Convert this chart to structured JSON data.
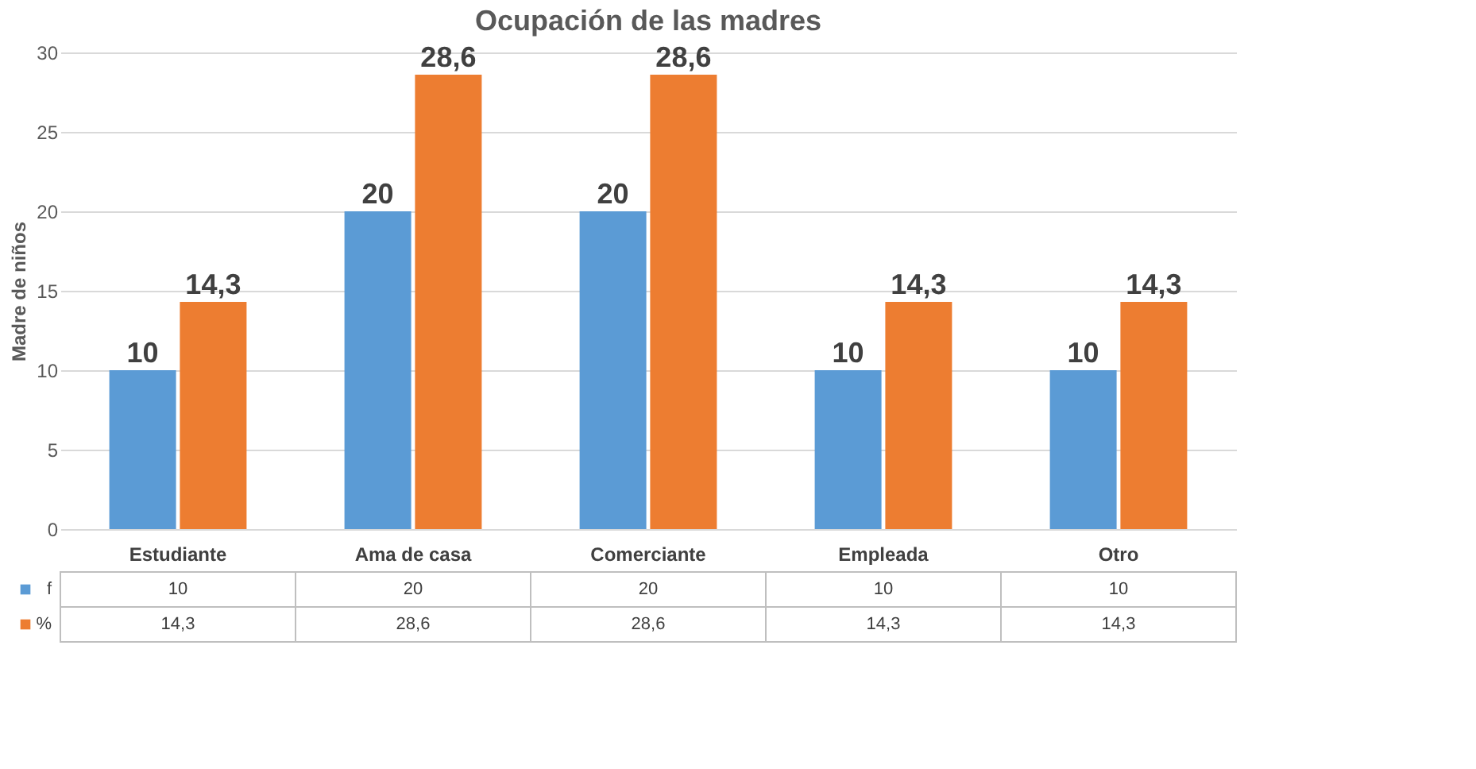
{
  "chart_data": {
    "type": "bar",
    "title": "Ocupación de las madres",
    "ylabel": "Madre de niños",
    "categories": [
      "Estudiante",
      "Ama de casa",
      "Comerciante",
      "Empleada",
      "Otro"
    ],
    "series": [
      {
        "name": "f",
        "color": "#5b9bd5",
        "values": [
          10,
          20,
          20,
          10,
          10
        ],
        "value_labels": [
          "10",
          "20",
          "20",
          "10",
          "10"
        ]
      },
      {
        "name": "%",
        "color": "#ed7d31",
        "values": [
          14.3,
          28.6,
          28.6,
          14.3,
          14.3
        ],
        "value_labels": [
          "14,3",
          "28,6",
          "28,6",
          "14,3",
          "14,3"
        ]
      }
    ],
    "ylim": [
      0,
      30
    ],
    "yticks": [
      0,
      5,
      10,
      15,
      20,
      25,
      30
    ],
    "grid": "y",
    "legend": "bottom"
  }
}
